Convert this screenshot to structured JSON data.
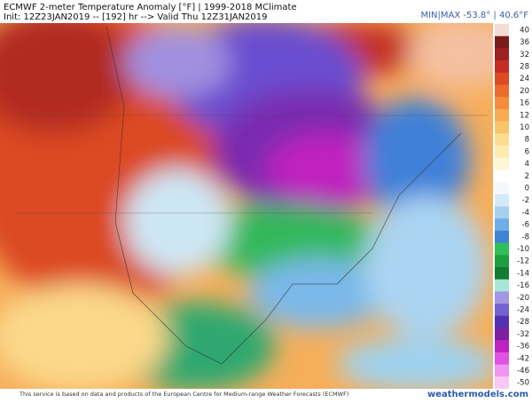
{
  "header": {
    "title": "ECMWF 2-meter Temperature Anomaly [°F] | 1999-2018 MClimate",
    "init": "Init: 12Z23JAN2019 -- [192] hr --> Valid Thu 12Z31JAN2019",
    "minmax": "MIN|MAX -53.8° | 40.6°F"
  },
  "legend": {
    "labels": [
      "40",
      "36",
      "32",
      "28",
      "24",
      "20",
      "16",
      "12",
      "10",
      "8",
      "6",
      "4",
      "2",
      "0",
      "-2",
      "-4",
      "-6",
      "-8",
      "-10",
      "-12",
      "-14",
      "-16",
      "-20",
      "-24",
      "-28",
      "-32",
      "-36",
      "-42",
      "-46",
      "-50"
    ],
    "colors": [
      "#f3dcd8",
      "#7a1a1a",
      "#9e2020",
      "#c42e22",
      "#de4a22",
      "#ee6a2e",
      "#f48c3c",
      "#f7aa50",
      "#fac46c",
      "#fcdc8e",
      "#feecb0",
      "#fff6d4",
      "#ffffff",
      "#f4f8fc",
      "#d4eaf8",
      "#a6d0f0",
      "#6eaee6",
      "#3f82d6",
      "#2fbe5c",
      "#1e9e40",
      "#127c30",
      "#a8e6d8",
      "#a496e2",
      "#7462d2",
      "#5232b2",
      "#7e1ea2",
      "#be22c0",
      "#e052e0",
      "#f094f0",
      "#f8c8f8"
    ]
  },
  "footer": {
    "note": "This service is based on data and products of the European Centre for Medium-range Weather Forecasts (ECMWF)",
    "brand": "weathermodels.com"
  }
}
